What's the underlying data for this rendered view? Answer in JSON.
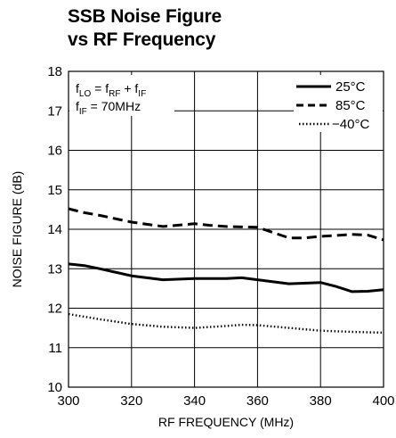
{
  "chart_data": {
    "type": "line",
    "title_lines": [
      "SSB Noise Figure",
      "vs RF Frequency"
    ],
    "xlabel": "RF FREQUENCY (MHz)",
    "ylabel": "NOISE FIGURE (dB)",
    "xlim": [
      300,
      400
    ],
    "ylim": [
      10,
      18
    ],
    "xticks": [
      "300",
      "320",
      "340",
      "360",
      "380",
      "400"
    ],
    "yticks": [
      "10",
      "11",
      "12",
      "13",
      "14",
      "15",
      "16",
      "17",
      "18"
    ],
    "grid": true,
    "legend_position": "top-right",
    "annotation": {
      "line1": {
        "f": "f",
        "lo": "LO",
        "eq": " = f",
        "rf": "RF",
        "plus": " + f",
        "if": "IF"
      },
      "line2": {
        "f": "f",
        "if": "IF",
        "rest": " = 70MHz"
      }
    },
    "series": [
      {
        "name": "25°C",
        "style": "solid",
        "x": [
          300,
          305,
          310,
          320,
          330,
          340,
          350,
          355,
          360,
          370,
          380,
          385,
          390,
          395,
          400
        ],
        "y": [
          13.12,
          13.08,
          13.0,
          12.82,
          12.72,
          12.75,
          12.75,
          12.77,
          12.72,
          12.62,
          12.65,
          12.55,
          12.42,
          12.43,
          12.47
        ]
      },
      {
        "name": "85°C",
        "style": "dashed",
        "x": [
          300,
          305,
          310,
          320,
          330,
          340,
          345,
          350,
          360,
          370,
          375,
          380,
          390,
          395,
          400
        ],
        "y": [
          14.52,
          14.42,
          14.35,
          14.18,
          14.07,
          14.14,
          14.1,
          14.07,
          14.05,
          13.78,
          13.78,
          13.82,
          13.87,
          13.85,
          13.73
        ]
      },
      {
        "name": "−40°C",
        "style": "dotted",
        "x": [
          300,
          310,
          320,
          330,
          340,
          350,
          355,
          360,
          370,
          380,
          390,
          400
        ],
        "y": [
          11.85,
          11.72,
          11.6,
          11.53,
          11.5,
          11.55,
          11.58,
          11.57,
          11.5,
          11.43,
          11.4,
          11.38
        ]
      }
    ]
  }
}
